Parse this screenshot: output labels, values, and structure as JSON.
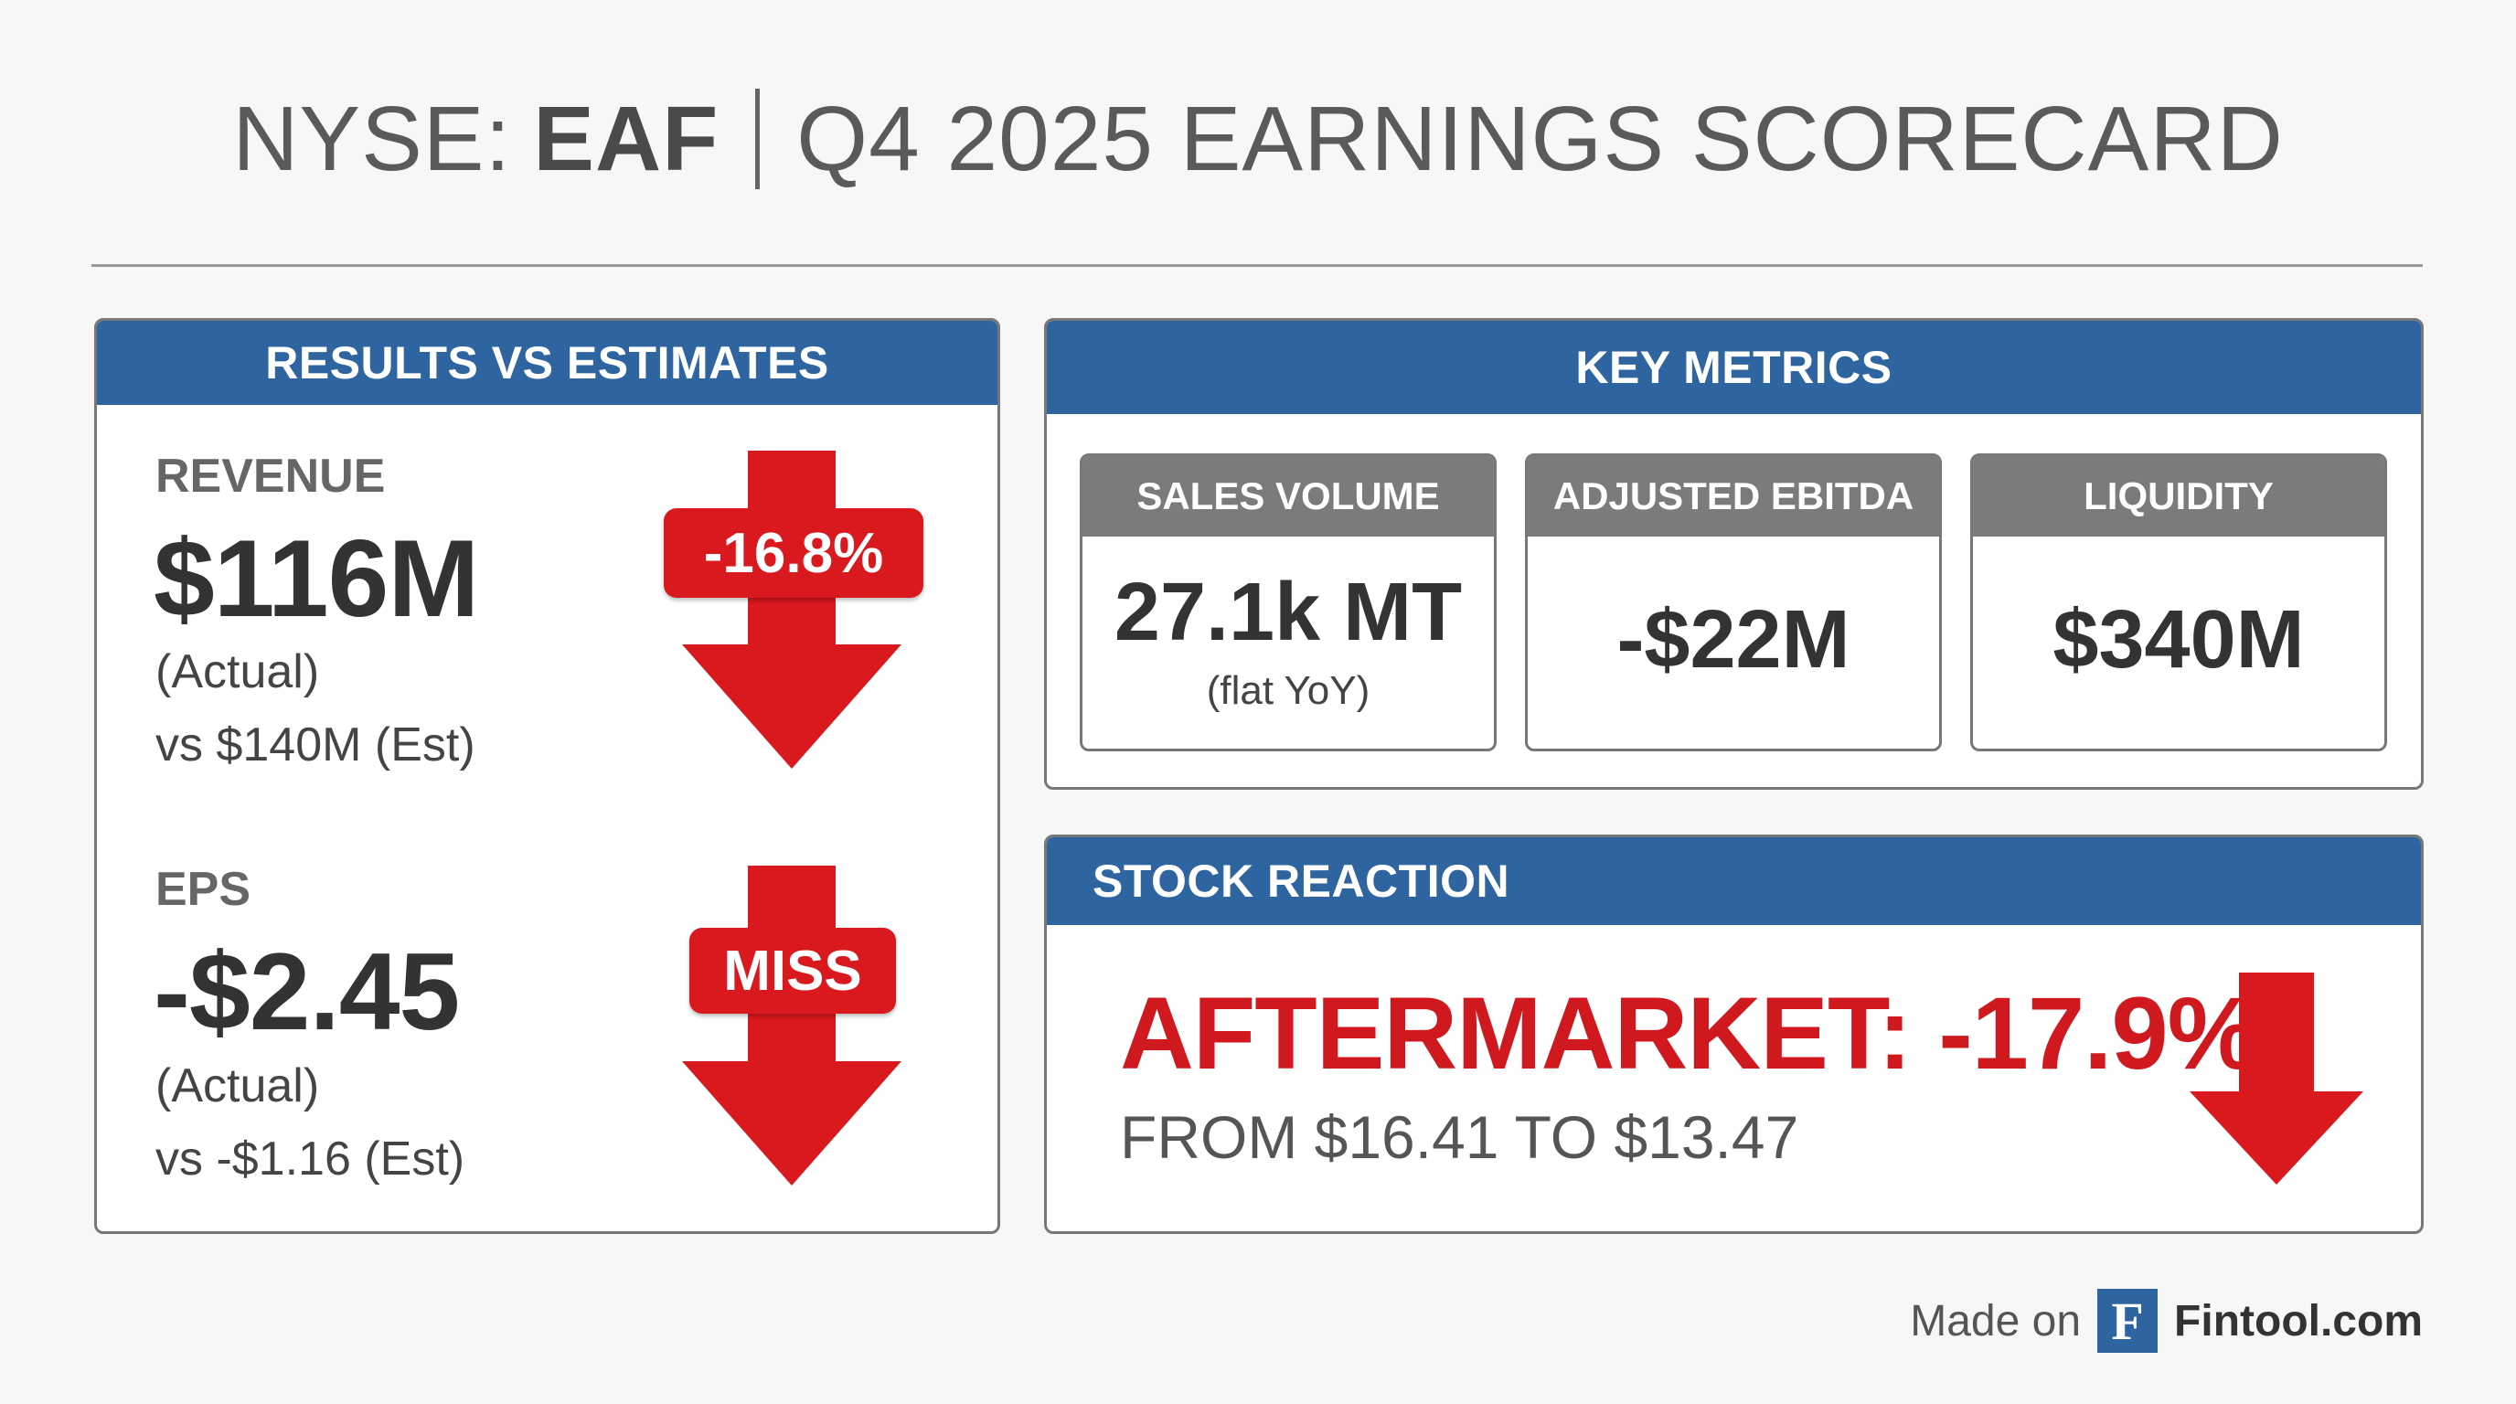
{
  "title": {
    "exchange": "NYSE:",
    "ticker": "EAF",
    "subtitle": "Q4 2025 EARNINGS SCORECARD"
  },
  "results": {
    "header": "RESULTS VS ESTIMATES",
    "revenue": {
      "label": "REVENUE",
      "value": "$116M",
      "actual_label": "(Actual)",
      "estimate": "vs $140M (Est)",
      "badge": "-16.8%"
    },
    "eps": {
      "label": "EPS",
      "value": "-$2.45",
      "actual_label": "(Actual)",
      "estimate": "vs -$1.16 (Est)",
      "badge": "MISS"
    }
  },
  "key_metrics": {
    "header": "KEY METRICS",
    "cards": [
      {
        "label": "SALES VOLUME",
        "value": "27.1k MT",
        "sub": "(flat YoY)"
      },
      {
        "label": "ADJUSTED EBITDA",
        "value": "-$22M"
      },
      {
        "label": "LIQUIDITY",
        "value": "$340M"
      }
    ]
  },
  "stock_reaction": {
    "header": "STOCK REACTION",
    "headline": "AFTERMARKET: -17.9%",
    "detail": "FROM $16.41 TO $13.47"
  },
  "footer": {
    "made_on": "Made on",
    "logo_letter": "F",
    "brand": "Fintool.com"
  },
  "colors": {
    "header_blue": "#2e65a0",
    "card_header_gray": "#7b7b7b",
    "negative_red": "#d9191e"
  },
  "icons": [
    "down-arrow-icon",
    "fintool-logo-icon"
  ]
}
